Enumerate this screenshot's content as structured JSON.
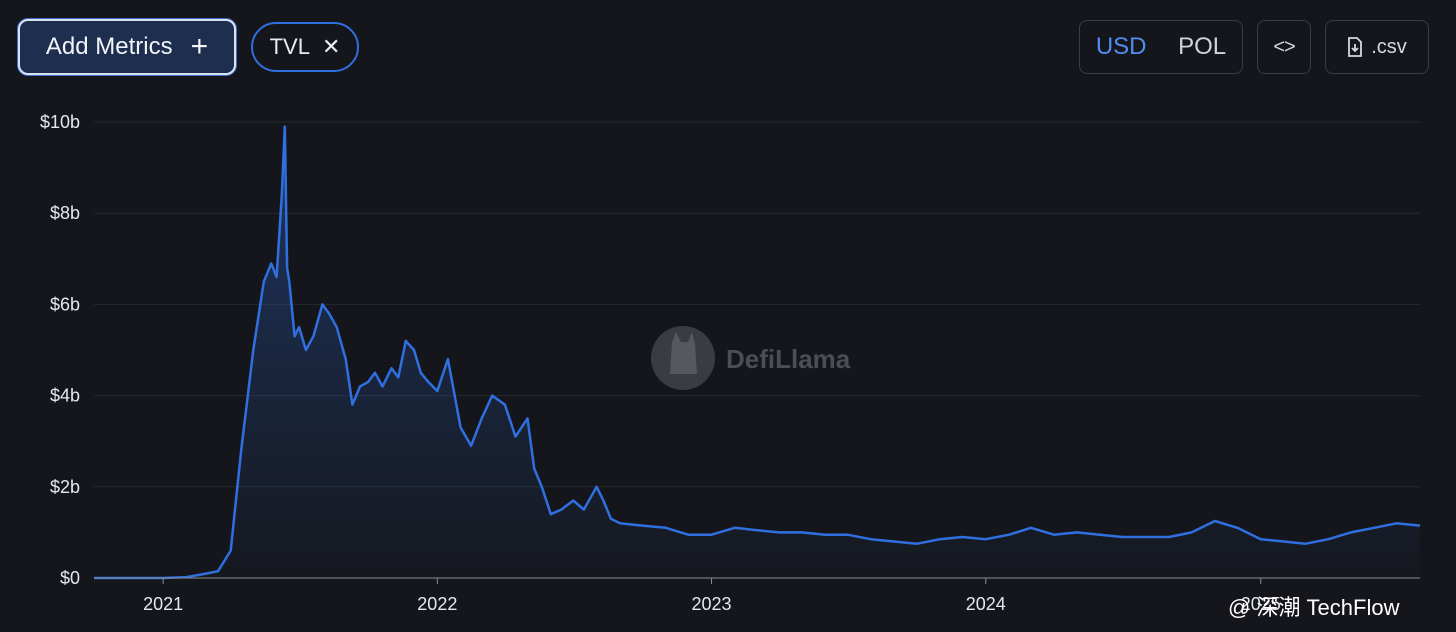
{
  "toolbar": {
    "add_metrics_label": "Add Metrics",
    "add_icon": "plus-icon",
    "metric_chip": {
      "label": "TVL",
      "remove_icon": "close-icon"
    },
    "currency_options": [
      "USD",
      "POL"
    ],
    "currency_selected": "USD",
    "embed_icon": "code-brackets-icon",
    "csv_label": ".csv",
    "csv_icon": "file-download-icon"
  },
  "watermark": {
    "text": "DefiLlama"
  },
  "credit": {
    "handle": "@ 深潮 TechFlow"
  },
  "colors": {
    "line": "#2f6fe0",
    "background": "#15161b",
    "accent": "#4f8df0"
  },
  "chart_data": {
    "type": "area",
    "title": "",
    "xlabel": "",
    "ylabel": "",
    "series": [
      {
        "name": "TVL",
        "x": [
          "2020-10-01",
          "2020-11-01",
          "2020-12-01",
          "2021-01-01",
          "2021-02-01",
          "2021-03-01",
          "2021-03-15",
          "2021-04-01",
          "2021-04-15",
          "2021-05-01",
          "2021-05-15",
          "2021-05-25",
          "2021-06-01",
          "2021-06-08",
          "2021-06-12",
          "2021-06-15",
          "2021-06-18",
          "2021-06-25",
          "2021-07-01",
          "2021-07-10",
          "2021-07-20",
          "2021-08-01",
          "2021-08-10",
          "2021-08-20",
          "2021-09-01",
          "2021-09-10",
          "2021-09-20",
          "2021-10-01",
          "2021-10-10",
          "2021-10-20",
          "2021-11-01",
          "2021-11-10",
          "2021-11-20",
          "2021-12-01",
          "2021-12-10",
          "2021-12-20",
          "2022-01-01",
          "2022-01-15",
          "2022-02-01",
          "2022-02-15",
          "2022-03-01",
          "2022-03-15",
          "2022-04-01",
          "2022-04-15",
          "2022-05-01",
          "2022-05-10",
          "2022-05-20",
          "2022-06-01",
          "2022-06-15",
          "2022-07-01",
          "2022-07-15",
          "2022-08-01",
          "2022-08-10",
          "2022-08-20",
          "2022-09-01",
          "2022-10-01",
          "2022-11-01",
          "2022-12-01",
          "2023-01-01",
          "2023-02-01",
          "2023-03-01",
          "2023-04-01",
          "2023-05-01",
          "2023-06-01",
          "2023-07-01",
          "2023-08-01",
          "2023-09-01",
          "2023-10-01",
          "2023-11-01",
          "2023-12-01",
          "2024-01-01",
          "2024-02-01",
          "2024-03-01",
          "2024-04-01",
          "2024-05-01",
          "2024-06-01",
          "2024-07-01",
          "2024-08-01",
          "2024-09-01",
          "2024-10-01",
          "2024-11-01",
          "2024-12-01",
          "2025-01-01",
          "2025-02-01",
          "2025-03-01",
          "2025-04-01",
          "2025-05-01",
          "2025-06-01",
          "2025-07-01",
          "2025-08-01"
        ],
        "values": [
          0.0,
          0.0,
          0.0,
          0.0,
          0.02,
          0.1,
          0.15,
          0.6,
          2.8,
          5.0,
          6.5,
          6.9,
          6.6,
          8.4,
          9.9,
          6.8,
          6.5,
          5.3,
          5.5,
          5.0,
          5.3,
          6.0,
          5.8,
          5.5,
          4.8,
          3.8,
          4.2,
          4.3,
          4.5,
          4.2,
          4.6,
          4.4,
          5.2,
          5.0,
          4.5,
          4.3,
          4.1,
          4.8,
          3.3,
          2.9,
          3.5,
          4.0,
          3.8,
          3.1,
          3.5,
          2.4,
          2.0,
          1.4,
          1.5,
          1.7,
          1.5,
          2.0,
          1.7,
          1.3,
          1.2,
          1.15,
          1.1,
          0.95,
          0.95,
          1.1,
          1.05,
          1.0,
          1.0,
          0.95,
          0.95,
          0.85,
          0.8,
          0.75,
          0.85,
          0.9,
          0.85,
          0.95,
          1.1,
          0.95,
          1.0,
          0.95,
          0.9,
          0.9,
          0.9,
          1.0,
          1.25,
          1.1,
          0.85,
          0.8,
          0.75,
          0.85,
          1.0,
          1.1,
          1.2,
          1.15
        ]
      }
    ],
    "xlim": [
      "2020-10-01",
      "2025-08-01"
    ],
    "ylim": [
      0,
      10
    ],
    "y_ticks": [
      {
        "value": 0,
        "label": "$0"
      },
      {
        "value": 2,
        "label": "$2b"
      },
      {
        "value": 4,
        "label": "$4b"
      },
      {
        "value": 6,
        "label": "$6b"
      },
      {
        "value": 8,
        "label": "$8b"
      },
      {
        "value": 10,
        "label": "$10b"
      }
    ],
    "x_ticks": [
      {
        "value": "2021-01-01",
        "label": "2021"
      },
      {
        "value": "2022-01-01",
        "label": "2022"
      },
      {
        "value": "2023-01-01",
        "label": "2023"
      },
      {
        "value": "2024-01-01",
        "label": "2024"
      },
      {
        "value": "2025-01-01",
        "label": "2025"
      }
    ],
    "grid": true,
    "legend": "none"
  }
}
